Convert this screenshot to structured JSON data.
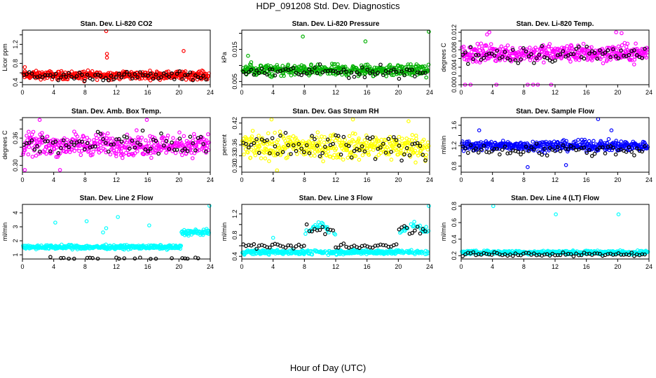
{
  "figure": {
    "title": "HDP_091208  Std. Dev. Diagnostics",
    "xlabel": "Hour of Day (UTC)"
  },
  "chart_data": [
    {
      "type": "scatter",
      "title": "Stan. Dev. Li-820 CO2",
      "ylabel": "Licor ppm",
      "color": "#ff0000",
      "xlim": [
        0,
        24
      ],
      "xticks": [
        0,
        4,
        8,
        12,
        16,
        20,
        24
      ],
      "ylim": [
        0.35,
        1.5
      ],
      "yticks": [
        0.4,
        0.6,
        0.8,
        1.0,
        1.2,
        1.4
      ],
      "yticklabels": [
        "0.4",
        "",
        "0.8",
        "",
        "1.2",
        ""
      ],
      "base": 0.55,
      "spread": 0.06,
      "black_base": 0.53,
      "outliers": [
        [
          10.7,
          1.48
        ],
        [
          10.8,
          1.0
        ],
        [
          10.8,
          0.92
        ],
        [
          20.6,
          1.06
        ],
        [
          0.3,
          0.72
        ],
        [
          7.9,
          0.42
        ]
      ]
    },
    {
      "type": "scatter",
      "title": "Stan. Dev. Li-820 Pressure",
      "ylabel": "kPa",
      "color": "#00b000",
      "xlim": [
        0,
        24
      ],
      "xticks": [
        0,
        4,
        8,
        12,
        16,
        20,
        24
      ],
      "ylim": [
        0.004,
        0.021
      ],
      "yticks": [
        0.005,
        0.01,
        0.015,
        0.02
      ],
      "yticklabels": [
        "0.005",
        "",
        "0.015",
        ""
      ],
      "base": 0.0085,
      "spread": 0.0012,
      "black_base": 0.008,
      "outliers": [
        [
          0.8,
          0.013
        ],
        [
          7.8,
          0.019
        ],
        [
          15.8,
          0.0175
        ],
        [
          23.9,
          0.0205
        ],
        [
          1.2,
          0.011
        ]
      ]
    },
    {
      "type": "scatter",
      "title": "Stan. Dev. Li-820 Temp.",
      "ylabel": "degrees C",
      "color": "#ff00ff",
      "xlim": [
        0,
        24
      ],
      "xticks": [
        0,
        4,
        8,
        12,
        16,
        20,
        24
      ],
      "ylim": [
        0,
        0.0125
      ],
      "yticks": [
        0,
        0.002,
        0.004,
        0.006,
        0.008,
        0.01,
        0.012
      ],
      "yticklabels": [
        "0.000",
        "",
        "0.004",
        "",
        "0.008",
        "",
        "0.012"
      ],
      "base": 0.0072,
      "spread": 0.0014,
      "black_base": 0.007,
      "outliers": [
        [
          0.5,
          0
        ],
        [
          1.2,
          0
        ],
        [
          8.5,
          0
        ],
        [
          9.2,
          0
        ],
        [
          9.8,
          0
        ],
        [
          11.5,
          0
        ],
        [
          3.6,
          0.012
        ],
        [
          19.8,
          0.012
        ],
        [
          4.5,
          0
        ],
        [
          3.3,
          0.0115
        ],
        [
          20.5,
          0.0118
        ]
      ]
    },
    {
      "type": "scatter",
      "title": "Stan. Dev. Amb. Box Temp.",
      "ylabel": "degrees C",
      "color": "#ff00ff",
      "xlim": [
        0,
        24
      ],
      "xticks": [
        0,
        4,
        8,
        12,
        16,
        20,
        24
      ],
      "ylim": [
        0.285,
        0.405
      ],
      "yticks": [
        0.3,
        0.32,
        0.34,
        0.36,
        0.38,
        0.4
      ],
      "yticklabels": [
        "0.30",
        "",
        "",
        "0.36",
        "",
        ""
      ],
      "base": 0.345,
      "spread": 0.017,
      "black_base": 0.345,
      "outliers": [
        [
          2.2,
          0.4
        ],
        [
          15.9,
          0.4
        ],
        [
          0.3,
          0.29
        ],
        [
          4.8,
          0.29
        ]
      ]
    },
    {
      "type": "scatter",
      "title": "Stan. Dev. Gas Stream RH",
      "ylabel": "percent",
      "color": "#ffff00",
      "xlim": [
        0,
        24
      ],
      "xticks": [
        0,
        4,
        8,
        12,
        16,
        20,
        24
      ],
      "ylim": [
        0.285,
        0.435
      ],
      "yticks": [
        0.3,
        0.33,
        0.36,
        0.39,
        0.42
      ],
      "yticklabels": [
        "0.30",
        "0.33",
        "0.36",
        "",
        "0.42"
      ],
      "base": 0.355,
      "spread": 0.024,
      "black_base": 0.355,
      "outliers": [
        [
          3.8,
          0.43
        ],
        [
          14.2,
          0.43
        ],
        [
          21.3,
          0.425
        ],
        [
          4.5,
          0.29
        ]
      ]
    },
    {
      "type": "scatter",
      "title": "Stan. Dev. Sample Flow",
      "ylabel": "ml/min",
      "color": "#0000ff",
      "xlim": [
        0,
        24
      ],
      "xticks": [
        0,
        4,
        8,
        12,
        16,
        20,
        24
      ],
      "ylim": [
        0.68,
        1.75
      ],
      "yticks": [
        0.8,
        1.0,
        1.2,
        1.4,
        1.6
      ],
      "yticklabels": [
        "0.8",
        "",
        "1.2",
        "",
        "1.6"
      ],
      "base": 1.2,
      "spread": 0.07,
      "black_base": 1.12,
      "outliers": [
        [
          17.5,
          1.72
        ],
        [
          8.5,
          0.78
        ],
        [
          13.4,
          0.82
        ],
        [
          19.2,
          1.5
        ],
        [
          2.3,
          1.5
        ]
      ]
    },
    {
      "type": "scatter",
      "title": "Stan. Dev. Line 2 Flow",
      "ylabel": "ml/min",
      "color": "#00ffff",
      "xlim": [
        0,
        24
      ],
      "xticks": [
        0,
        4,
        8,
        12,
        16,
        20,
        24
      ],
      "ylim": [
        0.7,
        4.6
      ],
      "yticks": [
        1,
        2,
        3,
        4
      ],
      "yticklabels": [
        "1",
        "2",
        "3",
        "4"
      ],
      "base": 1.55,
      "spread": 0.1,
      "black_base": 0.67,
      "outliers": [
        [
          4.2,
          3.3
        ],
        [
          8.2,
          3.4
        ],
        [
          12.2,
          3.7
        ],
        [
          16.2,
          3.1
        ],
        [
          23.9,
          4.5
        ],
        [
          10.3,
          2.6
        ],
        [
          10.7,
          2.9
        ]
      ],
      "step": {
        "from": 20.3,
        "base": 2.6,
        "spread": 0.15
      }
    },
    {
      "type": "scatter",
      "title": "Stan. Dev. Line 3 Flow",
      "ylabel": "ml/min",
      "color": "#00ffff",
      "xlim": [
        0,
        24
      ],
      "xticks": [
        0,
        4,
        8,
        12,
        16,
        20,
        24
      ],
      "ylim": [
        0.35,
        1.38
      ],
      "yticks": [
        0.4,
        0.6,
        0.8,
        1.0,
        1.2
      ],
      "yticklabels": [
        "0.4",
        "",
        "0.8",
        "",
        "1.2"
      ],
      "base": 0.48,
      "spread": 0.03,
      "black_base": 0.6,
      "outliers": [
        [
          4.0,
          0.75
        ],
        [
          23.9,
          1.35
        ]
      ],
      "bumps": [
        [
          8,
          12,
          1.0
        ],
        [
          20,
          24,
          1.0
        ]
      ]
    },
    {
      "type": "scatter",
      "title": "Stan. Dev. Line 4 (LT) Flow",
      "ylabel": "ml/min",
      "color": "#00ffff",
      "xlim": [
        0,
        24
      ],
      "xticks": [
        0,
        4,
        8,
        12,
        16,
        20,
        24
      ],
      "ylim": [
        0.16,
        0.82
      ],
      "yticks": [
        0.2,
        0.4,
        0.6,
        0.8
      ],
      "yticklabels": [
        "0.2",
        "0.4",
        "0.6",
        "0.8"
      ],
      "base": 0.24,
      "spread": 0.015,
      "black_base": 0.22,
      "outliers": [
        [
          4.1,
          0.8
        ],
        [
          12.1,
          0.7
        ],
        [
          20.1,
          0.7
        ]
      ]
    }
  ]
}
